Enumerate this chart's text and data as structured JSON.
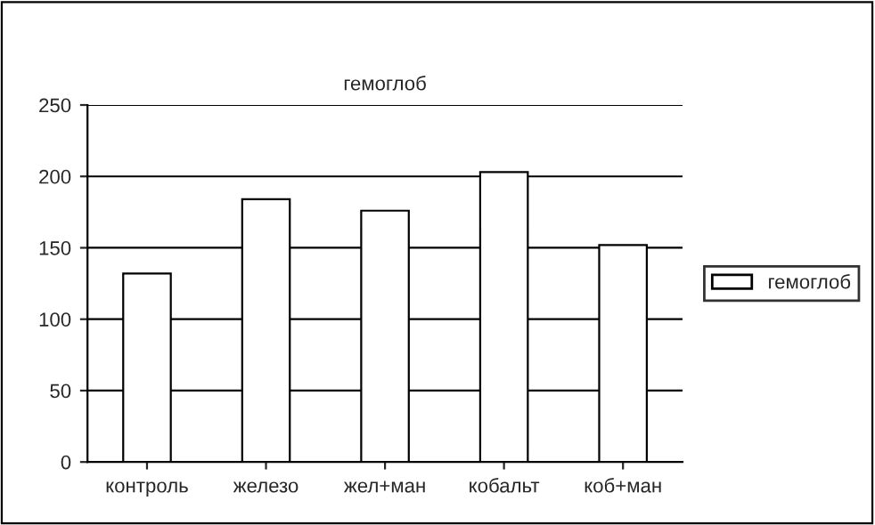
{
  "chart_data": {
    "type": "bar",
    "title": "гемоглоб",
    "categories": [
      "контроль",
      "железо",
      "жел+ман",
      "кобальт",
      "коб+ман"
    ],
    "series": [
      {
        "name": "гемоглоб",
        "color": "#ffffff",
        "values": [
          132,
          184,
          176,
          203,
          152
        ]
      }
    ],
    "ylim": [
      0,
      250
    ],
    "yticks": [
      0,
      50,
      100,
      150,
      200,
      250
    ],
    "grid": "y",
    "legend": "right"
  }
}
